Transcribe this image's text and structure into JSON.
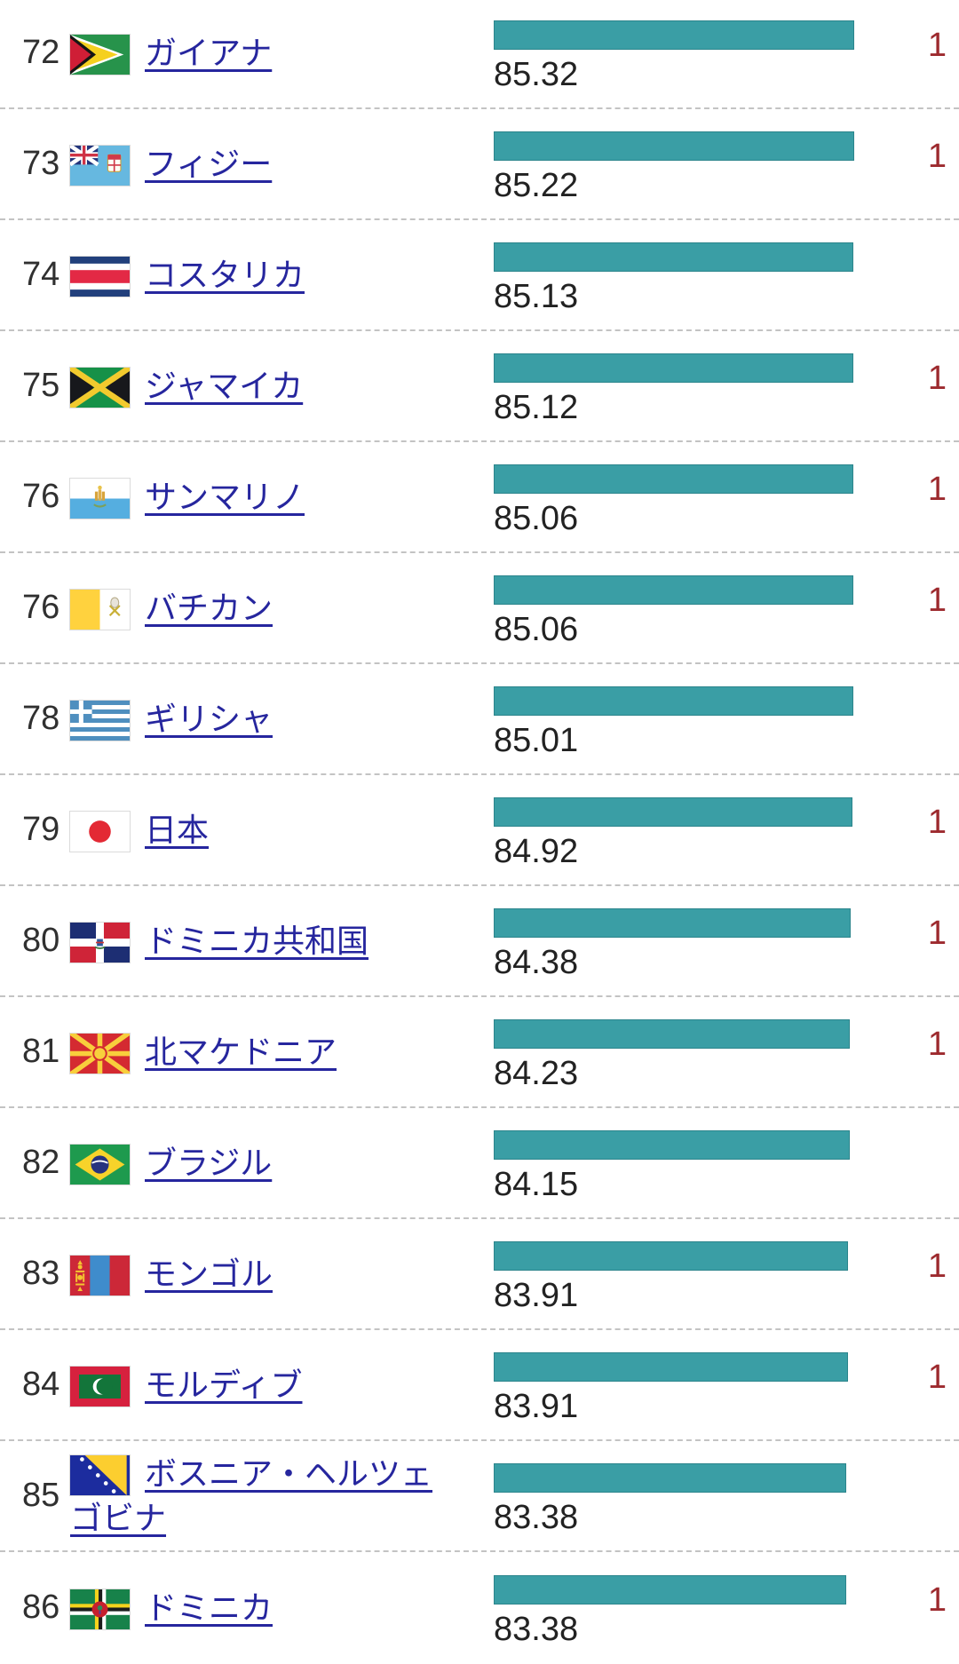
{
  "list": {
    "bar_color": "#3a9ea5",
    "link_color": "#26269e",
    "change_color": "#9d2a2e",
    "scale_max": 100,
    "rows": [
      {
        "rank": "72",
        "flag": "guyana-flag",
        "name": "ガイアナ",
        "score": "85.32",
        "value": 85.32,
        "change": "1"
      },
      {
        "rank": "73",
        "flag": "fiji-flag",
        "name": "フィジー",
        "score": "85.22",
        "value": 85.22,
        "change": "1"
      },
      {
        "rank": "74",
        "flag": "costa-rica-flag",
        "name": "コスタリカ",
        "score": "85.13",
        "value": 85.13,
        "change": ""
      },
      {
        "rank": "75",
        "flag": "jamaica-flag",
        "name": "ジャマイカ",
        "score": "85.12",
        "value": 85.12,
        "change": "1"
      },
      {
        "rank": "76",
        "flag": "san-marino-flag",
        "name": "サンマリノ",
        "score": "85.06",
        "value": 85.06,
        "change": "1"
      },
      {
        "rank": "76",
        "flag": "vatican-flag",
        "name": "バチカン",
        "score": "85.06",
        "value": 85.06,
        "change": "1"
      },
      {
        "rank": "78",
        "flag": "greece-flag",
        "name": "ギリシャ",
        "score": "85.01",
        "value": 85.01,
        "change": ""
      },
      {
        "rank": "79",
        "flag": "japan-flag",
        "name": "日本",
        "score": "84.92",
        "value": 84.92,
        "change": "1"
      },
      {
        "rank": "80",
        "flag": "dominican-republic-flag",
        "name": "ドミニカ共和国",
        "score": "84.38",
        "value": 84.38,
        "change": "1"
      },
      {
        "rank": "81",
        "flag": "north-macedonia-flag",
        "name": "北マケドニア",
        "score": "84.23",
        "value": 84.23,
        "change": "1"
      },
      {
        "rank": "82",
        "flag": "brazil-flag",
        "name": "ブラジル",
        "score": "84.15",
        "value": 84.15,
        "change": ""
      },
      {
        "rank": "83",
        "flag": "mongolia-flag",
        "name": "モンゴル",
        "score": "83.91",
        "value": 83.91,
        "change": "1"
      },
      {
        "rank": "84",
        "flag": "maldives-flag",
        "name": "モルディブ",
        "score": "83.91",
        "value": 83.91,
        "change": "1"
      },
      {
        "rank": "85",
        "flag": "bosnia-herzegovina-flag",
        "name": "ボスニア・ヘルツェゴビナ",
        "score": "83.38",
        "value": 83.38,
        "change": ""
      },
      {
        "rank": "86",
        "flag": "dominica-flag",
        "name": "ドミニカ",
        "score": "83.38",
        "value": 83.38,
        "change": "1"
      }
    ]
  }
}
